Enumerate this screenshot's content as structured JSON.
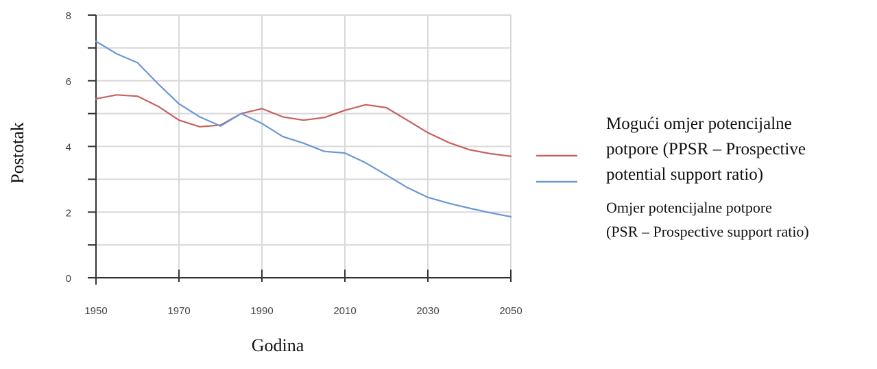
{
  "chart_data": {
    "type": "line",
    "title": "",
    "xlabel": "Godina",
    "ylabel": "Postotak",
    "xlim": [
      1950,
      2050
    ],
    "ylim": [
      0,
      8
    ],
    "x_ticks": [
      1950,
      1970,
      1990,
      2010,
      2030,
      2050
    ],
    "y_ticks": [
      0,
      2,
      4,
      6,
      8
    ],
    "grid": true,
    "legend_position": "right",
    "series": [
      {
        "name": "Mogući omjer potencijalne potpore (PPSR – Prospective potential support ratio)",
        "legend_lines": [
          "Mogući omjer potencijalne",
          "potpore (PPSR – Prospective",
          "potential support ratio)"
        ],
        "color": "#c9605f",
        "x": [
          1950,
          1955,
          1960,
          1965,
          1970,
          1975,
          1980,
          1985,
          1990,
          1995,
          2000,
          2005,
          2010,
          2015,
          2020,
          2025,
          2030,
          2035,
          2040,
          2045,
          2050
        ],
        "y": [
          5.45,
          5.57,
          5.53,
          5.22,
          4.8,
          4.6,
          4.65,
          5.0,
          5.15,
          4.9,
          4.8,
          4.88,
          5.1,
          5.27,
          5.18,
          4.8,
          4.42,
          4.12,
          3.9,
          3.78,
          3.7
        ]
      },
      {
        "name": "Omjer potencijalne potpore (PSR – Prospective support ratio)",
        "legend_lines": [
          "Omjer potencijalne potpore",
          "(PSR – Prospective support ratio)"
        ],
        "color": "#6a97d6",
        "x": [
          1950,
          1955,
          1960,
          1965,
          1970,
          1975,
          1980,
          1985,
          1990,
          1995,
          2000,
          2005,
          2010,
          2015,
          2020,
          2025,
          2030,
          2035,
          2040,
          2045,
          2050
        ],
        "y": [
          7.2,
          6.82,
          6.55,
          5.9,
          5.3,
          4.9,
          4.62,
          5.0,
          4.7,
          4.3,
          4.1,
          3.85,
          3.8,
          3.5,
          3.13,
          2.75,
          2.45,
          2.27,
          2.12,
          1.98,
          1.86
        ]
      }
    ]
  }
}
